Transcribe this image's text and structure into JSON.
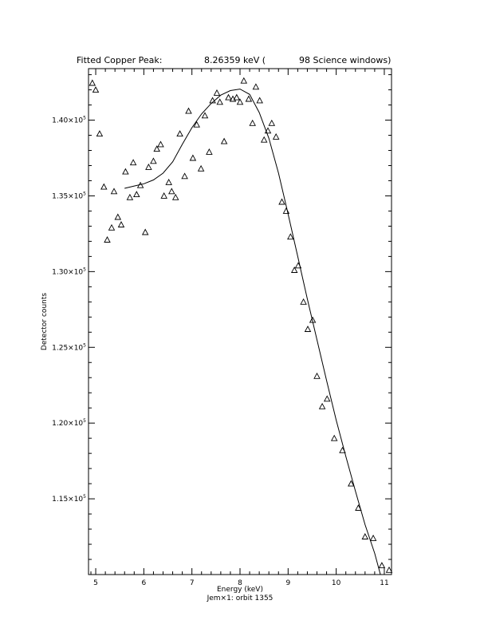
{
  "chart_data": {
    "type": "scatter",
    "title_parts": [
      "Fitted Copper Peak:",
      "8.26359 keV (",
      "98 Science windows)"
    ],
    "xlabel": "Energy (keV)",
    "ylabel": "Detector counts",
    "subtitle": "Jem×1: orbit 1355",
    "xlim": [
      4.85,
      11.15
    ],
    "ylim": [
      110000,
      143400
    ],
    "xticks": [
      5,
      6,
      7,
      8,
      9,
      10,
      11
    ],
    "yticks": [
      {
        "value": 115000,
        "mantissa": "1.15×10",
        "exp": "5"
      },
      {
        "value": 120000,
        "mantissa": "1.20×10",
        "exp": "5"
      },
      {
        "value": 125000,
        "mantissa": "1.25×10",
        "exp": "5"
      },
      {
        "value": 130000,
        "mantissa": "1.30×10",
        "exp": "5"
      },
      {
        "value": 135000,
        "mantissa": "1.35×10",
        "exp": "5"
      },
      {
        "value": 140000,
        "mantissa": "1.40×10",
        "exp": "5"
      }
    ],
    "series": [
      {
        "kind": "points",
        "marker": "open-triangle",
        "points": [
          [
            4.93,
            142450
          ],
          [
            5.0,
            142000
          ],
          [
            5.08,
            139100
          ],
          [
            5.17,
            135600
          ],
          [
            5.24,
            132100
          ],
          [
            5.33,
            132900
          ],
          [
            5.38,
            135300
          ],
          [
            5.46,
            133600
          ],
          [
            5.53,
            133100
          ],
          [
            5.62,
            136600
          ],
          [
            5.71,
            134900
          ],
          [
            5.78,
            137200
          ],
          [
            5.85,
            135100
          ],
          [
            5.93,
            135700
          ],
          [
            6.03,
            132600
          ],
          [
            6.1,
            136900
          ],
          [
            6.2,
            137300
          ],
          [
            6.27,
            138100
          ],
          [
            6.35,
            138400
          ],
          [
            6.42,
            135000
          ],
          [
            6.52,
            135900
          ],
          [
            6.58,
            135300
          ],
          [
            6.66,
            134900
          ],
          [
            6.75,
            139100
          ],
          [
            6.85,
            136300
          ],
          [
            6.93,
            140600
          ],
          [
            7.02,
            137500
          ],
          [
            7.1,
            139700
          ],
          [
            7.19,
            136800
          ],
          [
            7.27,
            140300
          ],
          [
            7.36,
            137900
          ],
          [
            7.43,
            141300
          ],
          [
            7.52,
            141800
          ],
          [
            7.58,
            141200
          ],
          [
            7.67,
            138600
          ],
          [
            7.76,
            141500
          ],
          [
            7.85,
            141400
          ],
          [
            7.93,
            141500
          ],
          [
            8.0,
            141200
          ],
          [
            8.08,
            142600
          ],
          [
            8.18,
            141400
          ],
          [
            8.26,
            139800
          ],
          [
            8.33,
            142200
          ],
          [
            8.41,
            141300
          ],
          [
            8.5,
            138700
          ],
          [
            8.58,
            139300
          ],
          [
            8.66,
            139800
          ],
          [
            8.75,
            138900
          ],
          [
            8.87,
            134600
          ],
          [
            8.96,
            134000
          ],
          [
            9.05,
            132300
          ],
          [
            9.13,
            130100
          ],
          [
            9.21,
            130400
          ],
          [
            9.32,
            128000
          ],
          [
            9.41,
            126200
          ],
          [
            9.51,
            126800
          ],
          [
            9.6,
            123100
          ],
          [
            9.71,
            121100
          ],
          [
            9.81,
            121600
          ],
          [
            9.96,
            119000
          ],
          [
            10.13,
            118200
          ],
          [
            10.31,
            116000
          ],
          [
            10.46,
            114400
          ],
          [
            10.6,
            112500
          ],
          [
            10.77,
            112400
          ],
          [
            10.95,
            110600
          ],
          [
            11.1,
            110300
          ]
        ]
      },
      {
        "kind": "fit-curve",
        "points": [
          [
            5.6,
            135500
          ],
          [
            5.8,
            135650
          ],
          [
            6.0,
            135800
          ],
          [
            6.2,
            136050
          ],
          [
            6.4,
            136500
          ],
          [
            6.6,
            137250
          ],
          [
            6.8,
            138400
          ],
          [
            7.0,
            139500
          ],
          [
            7.2,
            140400
          ],
          [
            7.4,
            141100
          ],
          [
            7.6,
            141650
          ],
          [
            7.8,
            141950
          ],
          [
            8.0,
            142050
          ],
          [
            8.2,
            141700
          ],
          [
            8.4,
            140500
          ],
          [
            8.6,
            138800
          ],
          [
            8.8,
            136500
          ],
          [
            9.0,
            133800
          ],
          [
            9.2,
            131000
          ],
          [
            9.4,
            128200
          ],
          [
            9.6,
            125500
          ],
          [
            9.8,
            122800
          ],
          [
            10.0,
            120200
          ],
          [
            10.2,
            117800
          ],
          [
            10.4,
            115500
          ],
          [
            10.6,
            113300
          ],
          [
            10.8,
            111400
          ],
          [
            10.92,
            110000
          ]
        ]
      }
    ]
  }
}
